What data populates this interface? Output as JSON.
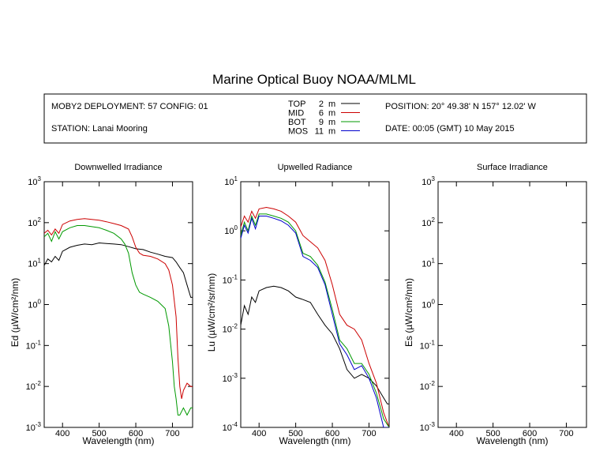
{
  "title": "Marine Optical Buoy NOAA/MLML",
  "info": {
    "deployment": "MOBY2 DEPLOYMENT: 57 CONFIG: 01",
    "station": "STATION: Lanai Mooring",
    "position": "POSITION: 20° 49.38' N   157° 12.02' W",
    "date": "DATE: 00:05 (GMT) 10 May 2015"
  },
  "legend": [
    {
      "name": "TOP",
      "depth": "2",
      "unit": "m",
      "color": "#000000"
    },
    {
      "name": "MID",
      "depth": "6",
      "unit": "m",
      "color": "#cc0000"
    },
    {
      "name": "BOT",
      "depth": "9",
      "unit": "m",
      "color": "#009900"
    },
    {
      "name": "MOS",
      "depth": "11",
      "unit": "m",
      "color": "#0000cc"
    }
  ],
  "chart_data": [
    {
      "type": "line",
      "title": "Downwelled Irradiance",
      "xlabel": "Wavelength (nm)",
      "ylabel": "Ed  (µW/cm²/nm)",
      "xlim": [
        350,
        755
      ],
      "ylim": [
        0.001,
        1000
      ],
      "yscale": "log",
      "xticks": [
        400,
        500,
        600,
        700
      ],
      "ytick_exponents": [
        -3,
        -2,
        -1,
        0,
        1,
        2,
        3
      ],
      "series": [
        {
          "name": "TOP",
          "color": "#000000",
          "x": [
            350,
            360,
            370,
            380,
            390,
            400,
            420,
            440,
            460,
            480,
            500,
            520,
            540,
            560,
            580,
            600,
            620,
            640,
            660,
            680,
            700,
            710,
            720,
            730,
            740,
            750,
            755
          ],
          "y": [
            9,
            13,
            11,
            15,
            12,
            20,
            25,
            28,
            30,
            29,
            32,
            31,
            30,
            29,
            26,
            23,
            22,
            19,
            17,
            15,
            14,
            11,
            8,
            6,
            3,
            1.5,
            1.5
          ]
        },
        {
          "name": "MID",
          "color": "#cc0000",
          "x": [
            350,
            360,
            370,
            380,
            390,
            400,
            420,
            440,
            460,
            480,
            500,
            520,
            540,
            560,
            580,
            590,
            600,
            610,
            620,
            640,
            660,
            680,
            690,
            700,
            710,
            715,
            720,
            725,
            730,
            740,
            750,
            755
          ],
          "y": [
            55,
            65,
            50,
            70,
            55,
            90,
            110,
            120,
            125,
            120,
            115,
            105,
            95,
            85,
            70,
            45,
            25,
            18,
            16,
            15,
            13,
            10,
            7,
            3,
            0.5,
            0.05,
            0.01,
            0.005,
            0.008,
            0.012,
            0.01,
            0.01
          ]
        },
        {
          "name": "BOT",
          "color": "#009900",
          "x": [
            350,
            360,
            370,
            380,
            390,
            400,
            420,
            440,
            460,
            480,
            500,
            520,
            540,
            560,
            570,
            580,
            590,
            600,
            610,
            620,
            640,
            660,
            680,
            690,
            700,
            705,
            710,
            715,
            720,
            730,
            740,
            750,
            755
          ],
          "y": [
            45,
            55,
            35,
            60,
            40,
            60,
            75,
            85,
            85,
            80,
            75,
            65,
            55,
            40,
            30,
            18,
            6,
            3,
            2,
            1.8,
            1.5,
            1.2,
            0.8,
            0.3,
            0.04,
            0.01,
            0.005,
            0.002,
            0.002,
            0.003,
            0.002,
            0.003,
            0.003
          ]
        }
      ]
    },
    {
      "type": "line",
      "title": "Upwelled Radiance",
      "xlabel": "Wavelength (nm)",
      "ylabel": "Lu  (µW/cm²/sr/nm)",
      "xlim": [
        350,
        755
      ],
      "ylim": [
        0.0001,
        10
      ],
      "yscale": "log",
      "xticks": [
        400,
        500,
        600,
        700
      ],
      "ytick_exponents": [
        -4,
        -3,
        -2,
        -1,
        0,
        1
      ],
      "series": [
        {
          "name": "TOP",
          "color": "#000000",
          "x": [
            350,
            360,
            370,
            380,
            390,
            400,
            420,
            440,
            460,
            480,
            500,
            520,
            540,
            560,
            580,
            600,
            620,
            640,
            660,
            680,
            700,
            720,
            740,
            750,
            755
          ],
          "y": [
            0.012,
            0.03,
            0.02,
            0.045,
            0.035,
            0.06,
            0.07,
            0.075,
            0.07,
            0.06,
            0.045,
            0.04,
            0.035,
            0.02,
            0.012,
            0.008,
            0.004,
            0.0015,
            0.001,
            0.0012,
            0.001,
            0.0007,
            0.0004,
            0.0003,
            0.0003
          ]
        },
        {
          "name": "MID",
          "color": "#cc0000",
          "x": [
            350,
            360,
            370,
            380,
            390,
            400,
            420,
            440,
            460,
            480,
            500,
            520,
            540,
            560,
            580,
            600,
            620,
            640,
            660,
            680,
            700,
            720,
            740,
            755
          ],
          "y": [
            1.2,
            2,
            1.5,
            2.5,
            1.8,
            2.8,
            3,
            2.8,
            2.5,
            2,
            1.5,
            0.8,
            0.6,
            0.45,
            0.25,
            0.08,
            0.02,
            0.012,
            0.01,
            0.006,
            0.002,
            0.0008,
            0.0002,
            0.0001
          ]
        },
        {
          "name": "BOT",
          "color": "#009900",
          "x": [
            350,
            360,
            370,
            380,
            390,
            400,
            420,
            440,
            460,
            480,
            500,
            520,
            540,
            560,
            580,
            600,
            620,
            640,
            660,
            680,
            700,
            720,
            740,
            755
          ],
          "y": [
            0.8,
            1.5,
            1,
            2,
            1.3,
            2.2,
            2.2,
            2,
            1.8,
            1.5,
            1,
            0.35,
            0.3,
            0.2,
            0.09,
            0.025,
            0.006,
            0.004,
            0.002,
            0.002,
            0.0012,
            0.0005,
            0.00015,
            0.0001
          ]
        },
        {
          "name": "MOS",
          "color": "#0000cc",
          "x": [
            350,
            360,
            370,
            380,
            390,
            400,
            420,
            440,
            460,
            480,
            500,
            520,
            540,
            560,
            580,
            600,
            620,
            640,
            660,
            680,
            700,
            720,
            740,
            755
          ],
          "y": [
            0.7,
            1.3,
            0.9,
            1.8,
            1.1,
            2,
            2,
            1.8,
            1.6,
            1.3,
            0.9,
            0.3,
            0.25,
            0.18,
            0.08,
            0.02,
            0.005,
            0.003,
            0.0015,
            0.0018,
            0.001,
            0.0004,
            0.0001,
            0.0001
          ]
        }
      ]
    },
    {
      "type": "line",
      "title": "Surface Irradiance",
      "xlabel": "Wavelength (nm)",
      "ylabel": "Es  (µW/cm²/nm)",
      "xlim": [
        350,
        755
      ],
      "ylim": [
        0.001,
        1000
      ],
      "yscale": "log",
      "xticks": [
        400,
        500,
        600,
        700
      ],
      "ytick_exponents": [
        -3,
        -2,
        -1,
        0,
        1,
        2,
        3
      ],
      "series": []
    }
  ]
}
